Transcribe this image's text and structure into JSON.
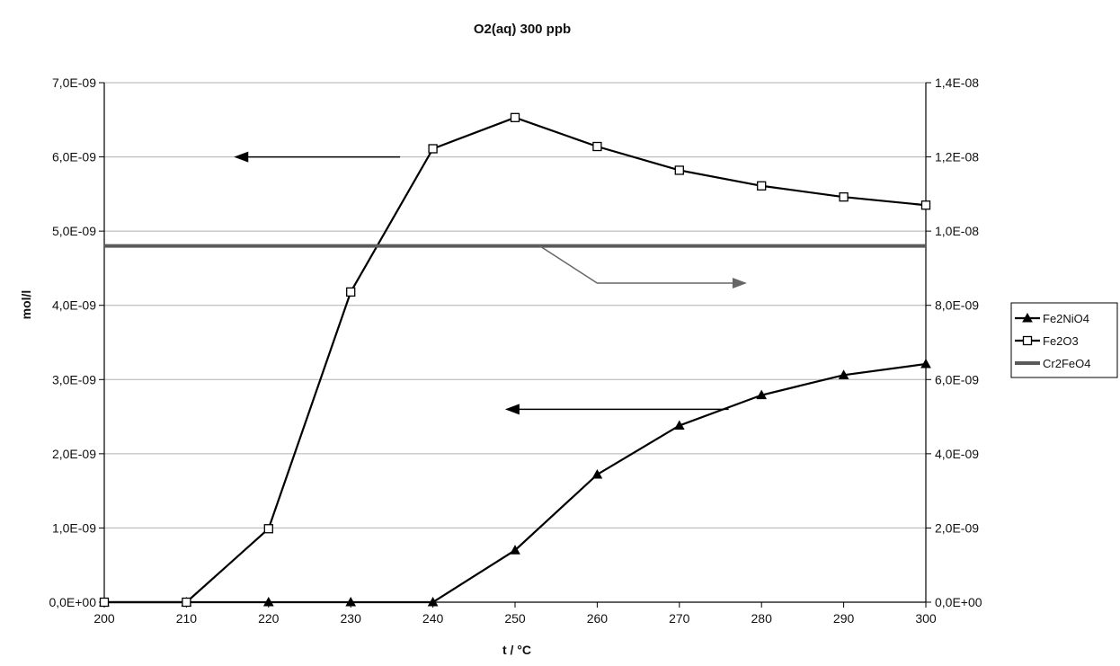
{
  "chart_data": {
    "type": "line",
    "title": "O2(aq) 300 ppb",
    "xlabel": "t / °C",
    "ylabel": "mol/l",
    "y2label": "",
    "x": [
      200,
      210,
      220,
      230,
      240,
      250,
      260,
      270,
      280,
      290,
      300
    ],
    "xticks": [
      "200",
      "210",
      "220",
      "230",
      "240",
      "250",
      "260",
      "270",
      "280",
      "290",
      "300"
    ],
    "xlim": [
      200,
      300
    ],
    "ylim": [
      0,
      7e-09
    ],
    "y2lim": [
      0,
      1.4e-08
    ],
    "yticks": [
      {
        "value": 0,
        "label": "0,0E+00"
      },
      {
        "value": 1e-09,
        "label": "1,0E-09"
      },
      {
        "value": 2e-09,
        "label": "2,0E-09"
      },
      {
        "value": 3e-09,
        "label": "3,0E-09"
      },
      {
        "value": 4e-09,
        "label": "4,0E-09"
      },
      {
        "value": 5e-09,
        "label": "5,0E-09"
      },
      {
        "value": 6e-09,
        "label": "6,0E-09"
      },
      {
        "value": 7e-09,
        "label": "7,0E-09"
      }
    ],
    "y2ticks": [
      {
        "value": 0,
        "label": "0,0E+00"
      },
      {
        "value": 2e-09,
        "label": "2,0E-09"
      },
      {
        "value": 4e-09,
        "label": "4,0E-09"
      },
      {
        "value": 6e-09,
        "label": "6,0E-09"
      },
      {
        "value": 8e-09,
        "label": "8,0E-09"
      },
      {
        "value": 1e-08,
        "label": "1,0E-08"
      },
      {
        "value": 1.2e-08,
        "label": "1,2E-08"
      },
      {
        "value": 1.4e-08,
        "label": "1,4E-08"
      }
    ],
    "grid": true,
    "legend_position": "right",
    "series": [
      {
        "name": "Fe2NiO4",
        "axis": "left",
        "marker": "triangle",
        "color": "#000000",
        "values": [
          0,
          0,
          0,
          0,
          0,
          7e-10,
          1.72e-09,
          2.38e-09,
          2.79e-09,
          3.06e-09,
          3.21e-09
        ]
      },
      {
        "name": "Fe2O3",
        "axis": "left",
        "marker": "square",
        "color": "#000000",
        "values": [
          0,
          0,
          9.9e-10,
          4.18e-09,
          6.11e-09,
          6.53e-09,
          6.14e-09,
          5.82e-09,
          5.61e-09,
          5.46e-09,
          5.35e-09
        ]
      },
      {
        "name": "Cr2FeO4",
        "axis": "right",
        "marker": "none",
        "color": "#5a5a5a",
        "values": [
          9.6e-09,
          9.6e-09,
          9.6e-09,
          9.6e-09,
          9.6e-09,
          9.6e-09,
          9.6e-09,
          9.6e-09,
          9.6e-09,
          9.6e-09,
          9.6e-09
        ]
      }
    ],
    "annotations": [
      {
        "type": "arrow",
        "axis": "left",
        "points": [
          [
            236,
            6e-09
          ],
          [
            216,
            6e-09
          ]
        ],
        "direction": "left",
        "color": "#000000"
      },
      {
        "type": "arrow",
        "axis": "left",
        "points": [
          [
            276,
            2.6e-09
          ],
          [
            249,
            2.6e-09
          ]
        ],
        "direction": "left",
        "color": "#000000"
      },
      {
        "type": "arrow",
        "axis": "right",
        "points": [
          [
            253,
            9.6e-09
          ],
          [
            260,
            8.6e-09
          ],
          [
            278,
            8.6e-09
          ]
        ],
        "direction": "right",
        "color": "#666666"
      }
    ]
  }
}
